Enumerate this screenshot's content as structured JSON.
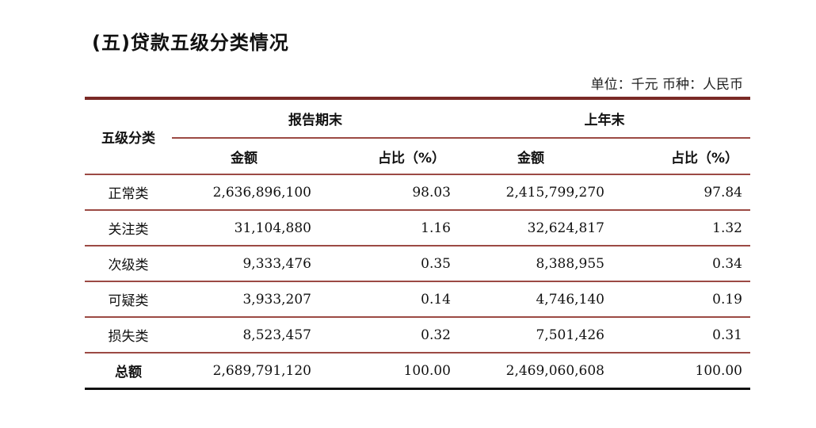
{
  "title": "(五)贷款五级分类情况",
  "unit_note": "单位：千元  币种：人民币",
  "table": {
    "headers": {
      "category": "五级分类",
      "period_end": "报告期末",
      "last_year_end": "上年末",
      "amount": "金额",
      "ratio": "占比（%）"
    },
    "rows": [
      {
        "category": "正常类",
        "cur_amount": "2,636,896,100",
        "cur_ratio": "98.03",
        "prev_amount": "2,415,799,270",
        "prev_ratio": "97.84"
      },
      {
        "category": "关注类",
        "cur_amount": "31,104,880",
        "cur_ratio": "1.16",
        "prev_amount": "32,624,817",
        "prev_ratio": "1.32"
      },
      {
        "category": "次级类",
        "cur_amount": "9,333,476",
        "cur_ratio": "0.35",
        "prev_amount": "8,388,955",
        "prev_ratio": "0.34"
      },
      {
        "category": "可疑类",
        "cur_amount": "3,933,207",
        "cur_ratio": "0.14",
        "prev_amount": "4,746,140",
        "prev_ratio": "0.19"
      },
      {
        "category": "损失类",
        "cur_amount": "8,523,457",
        "cur_ratio": "0.32",
        "prev_amount": "7,501,426",
        "prev_ratio": "0.31"
      }
    ],
    "total": {
      "category": "总额",
      "cur_amount": "2,689,791,120",
      "cur_ratio": "100.00",
      "prev_amount": "2,469,060,608",
      "prev_ratio": "100.00"
    }
  },
  "colors": {
    "rule": "#7a2a26",
    "separator": "#9c4a44"
  }
}
